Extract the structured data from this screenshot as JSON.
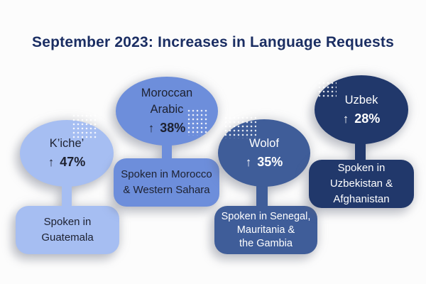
{
  "background_color": "#fcfcfc",
  "title": {
    "text": "September 2023: Increases in Language Requests",
    "color": "#1b2e63"
  },
  "balloons": [
    {
      "language": "K’iche’",
      "arrow_icon": "↑",
      "percent": "47%",
      "region_lines": [
        "Spoken in",
        "Guatemala"
      ],
      "fill_color": "#a6bef2",
      "text_color": "#1d2130"
    },
    {
      "language": "Moroccan Arabic",
      "arrow_icon": "↑",
      "percent": "38%",
      "region_lines": [
        "Spoken in Morocco",
        "& Western Sahara"
      ],
      "fill_color": "#6d8edb",
      "text_color": "#1d2130"
    },
    {
      "language": "Wolof",
      "arrow_icon": "↑",
      "percent": "35%",
      "region_lines": [
        "Spoken in Senegal,",
        "Mauritania &",
        "the Gambia"
      ],
      "fill_color": "#3f5d99",
      "text_color": "#ffffff"
    },
    {
      "language": "Uzbek",
      "arrow_icon": "↑",
      "percent": "28%",
      "region_lines": [
        "Spoken in",
        "Uzbekistan &",
        "Afghanistan"
      ],
      "fill_color": "#21386b",
      "text_color": "#ffffff"
    }
  ]
}
